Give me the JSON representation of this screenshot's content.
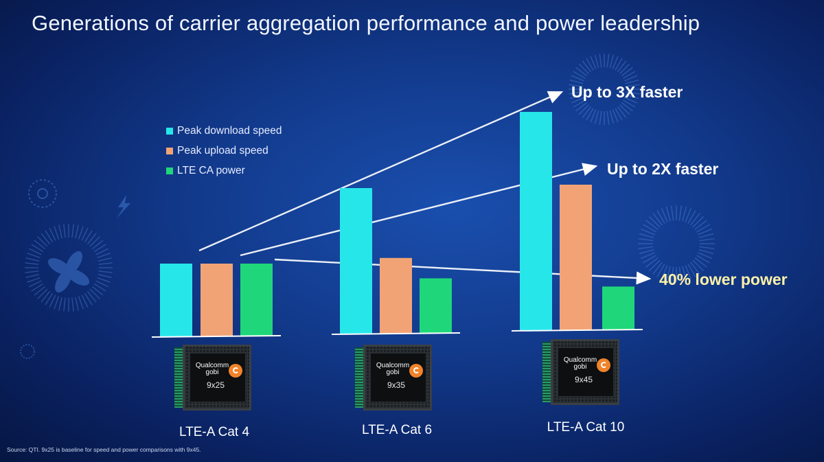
{
  "slide": {
    "title": "Generations of carrier aggregation performance and power leadership",
    "footnote": "Source: QTI. 9x25 is baseline for speed and power comparisons with 9x45."
  },
  "legend": [
    {
      "label": "Peak download speed",
      "color": "#27e6ea"
    },
    {
      "label": "Peak upload speed",
      "color": "#f2a376"
    },
    {
      "label": "LTE CA power",
      "color": "#1fd77a"
    }
  ],
  "chips": [
    {
      "brand_line1": "Qualcomm",
      "brand_line2": "gobi",
      "model": "9x25",
      "category": "LTE-A Cat 4"
    },
    {
      "brand_line1": "Qualcomm",
      "brand_line2": "gobi",
      "model": "9x35",
      "category": "LTE-A Cat 6"
    },
    {
      "brand_line1": "Qualcomm",
      "brand_line2": "gobi",
      "model": "9x45",
      "category": "LTE-A Cat 10"
    }
  ],
  "callouts": {
    "download": {
      "text": "Up to 3X faster",
      "color": "#ffffff"
    },
    "upload": {
      "text": "Up to 2X faster",
      "color": "#ffffff"
    },
    "power": {
      "text": "40% lower power",
      "color": "#fff2a8"
    }
  },
  "chart_data": {
    "type": "bar",
    "title": "Generations of carrier aggregation performance and power leadership",
    "categories": [
      "LTE-A Cat 4",
      "LTE-A Cat 6",
      "LTE-A Cat 10"
    ],
    "xlabel": "",
    "ylabel": "",
    "y_axis_shown": false,
    "grid": false,
    "legend_position": "top-left",
    "series": [
      {
        "name": "Peak download speed",
        "color": "#27e6ea",
        "values": [
          1.0,
          2.0,
          3.0
        ]
      },
      {
        "name": "Peak upload speed",
        "color": "#f2a376",
        "values": [
          1.0,
          1.04,
          2.0
        ]
      },
      {
        "name": "LTE CA power",
        "color": "#1fd77a",
        "values": [
          1.0,
          0.76,
          0.6
        ]
      }
    ]
  }
}
